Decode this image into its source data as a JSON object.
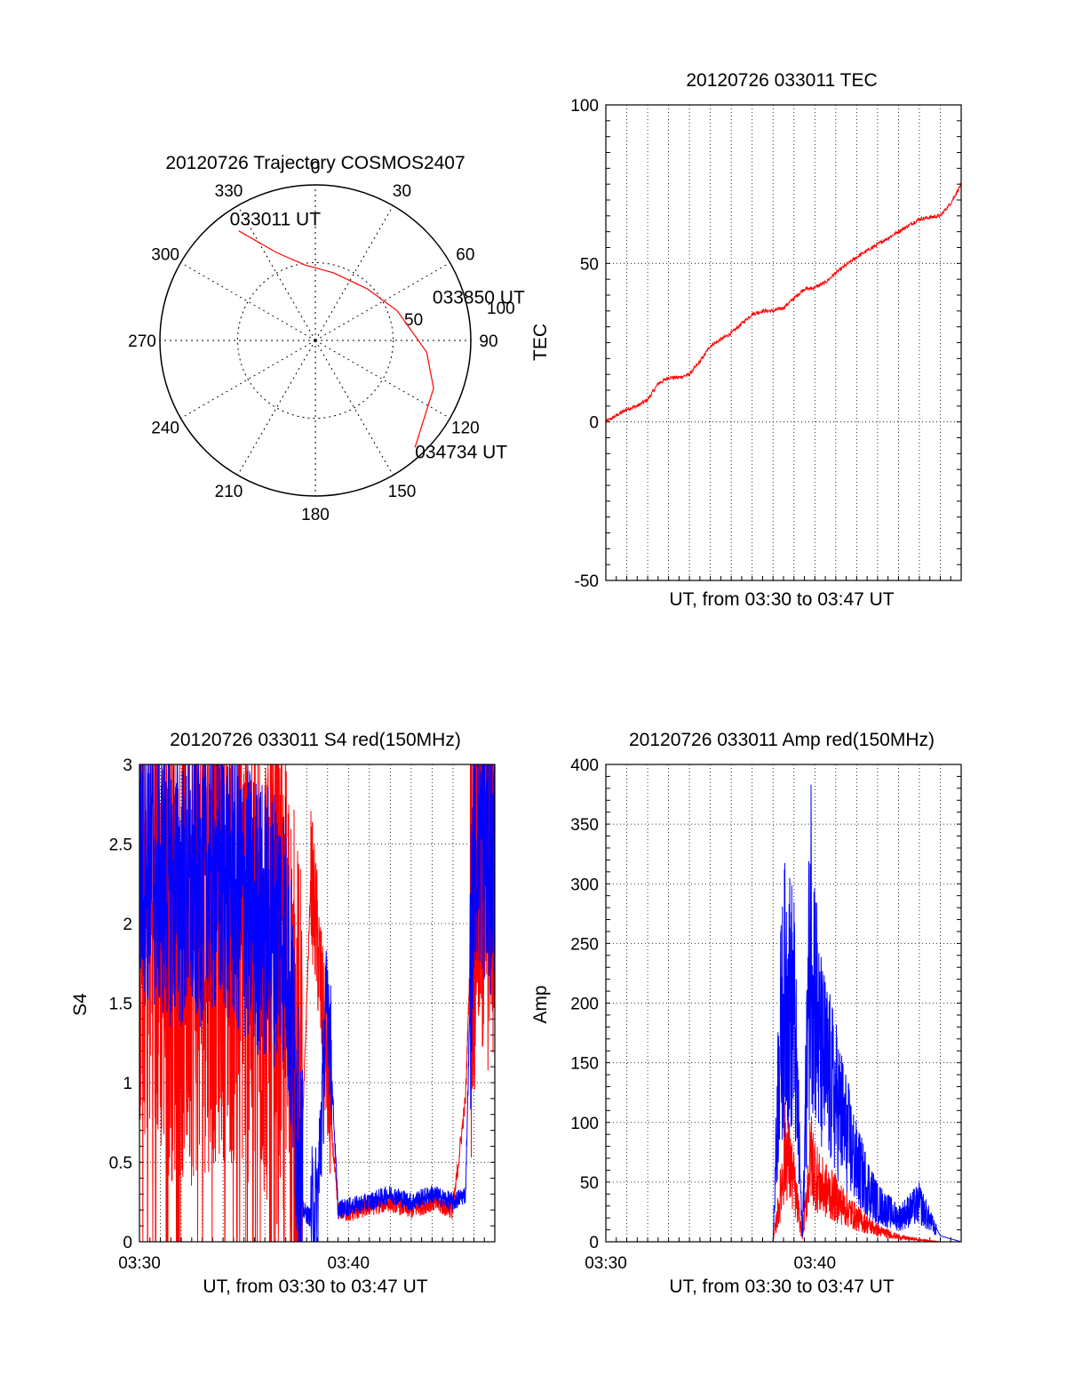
{
  "chart_data": [
    {
      "id": "trajectory",
      "type": "polar",
      "title": "20120726 Trajectory COSMOS2407",
      "angle_labels": [
        "0",
        "30",
        "60",
        "90",
        "120",
        "150",
        "180",
        "210",
        "240",
        "270",
        "300",
        "330"
      ],
      "radius_labels": [
        "50",
        "100"
      ],
      "radius_max": 100,
      "grid": true,
      "series": [
        {
          "color": "#ff0000",
          "points": [
            [
              -35,
              86
            ],
            [
              -24,
              62
            ],
            [
              -8,
              49
            ],
            [
              15,
              45
            ],
            [
              45,
              47
            ],
            [
              70,
              56
            ],
            [
              96,
              72
            ],
            [
              112,
              82
            ],
            [
              137,
              94
            ]
          ]
        }
      ],
      "annotations": [
        {
          "text": "033011 UT",
          "az": -35,
          "r": 86
        },
        {
          "text": "033850 UT",
          "az": 75,
          "r": 52
        },
        {
          "text": "034734 UT",
          "az": 137,
          "r": 94
        }
      ]
    },
    {
      "id": "tec",
      "type": "line",
      "title": "20120726 033011 TEC",
      "ylabel": "TEC",
      "xlabel": "UT, from 03:30 to 03:47 UT",
      "ylim": [
        -50,
        100
      ],
      "yticks": [
        "100",
        "50",
        "0",
        "-50"
      ],
      "xlim_min": [
        0,
        17
      ],
      "grid": true,
      "series": [
        {
          "color": "#ff0000",
          "x": [
            0,
            0.5,
            1,
            1.5,
            2,
            2.5,
            3,
            3.5,
            4,
            4.5,
            5,
            5.5,
            6,
            6.5,
            7,
            7.5,
            8,
            8.5,
            9,
            9.5,
            9.8,
            10.2,
            10.5,
            11,
            12,
            13,
            14,
            15,
            16,
            16.5,
            17
          ],
          "y": [
            0,
            2,
            4,
            5,
            7,
            12,
            14,
            14,
            15,
            19,
            24,
            26,
            28,
            31,
            34,
            35,
            35,
            36,
            39,
            42,
            42,
            43,
            44,
            47,
            52,
            56,
            60,
            64,
            65,
            69,
            75
          ]
        }
      ]
    },
    {
      "id": "s4",
      "type": "line",
      "title": "20120726 033011 S4 red(150MHz)",
      "ylabel": "S4",
      "xlabel": "UT, from 03:30 to 03:47 UT",
      "ylim": [
        0,
        3
      ],
      "yticks": [
        "0",
        "0.5",
        "1",
        "1.5",
        "2",
        "2.5",
        "3"
      ],
      "xticks": [
        "03:30",
        "03:40"
      ],
      "xlim_min": [
        0,
        17
      ],
      "grid": true,
      "series": [
        {
          "color": "#ff0000",
          "x": [
            0,
            2,
            4,
            6,
            7,
            7.8,
            8.2,
            8.5,
            9,
            9.5,
            10,
            11,
            12,
            13,
            14,
            15,
            15.6,
            16,
            17
          ],
          "y": [
            2.2,
            1.9,
            2.1,
            1.8,
            1.6,
            0.7,
            2.3,
            1.9,
            1.0,
            0.2,
            0.18,
            0.22,
            0.25,
            0.2,
            0.25,
            0.2,
            0.9,
            2.5,
            2.6
          ]
        },
        {
          "color": "#0000ff",
          "x": [
            0,
            2,
            4,
            6,
            7,
            7.8,
            8.2,
            8.5,
            9,
            9.5,
            10,
            11,
            12,
            13,
            14,
            15,
            15.6,
            16,
            17
          ],
          "y": [
            2.4,
            2.2,
            2.3,
            2.0,
            2.0,
            0.2,
            0.15,
            0.2,
            1.6,
            0.2,
            0.22,
            0.25,
            0.3,
            0.25,
            0.3,
            0.25,
            0.3,
            2.6,
            2.4
          ]
        }
      ]
    },
    {
      "id": "amp",
      "type": "line",
      "title": "20120726 033011 Amp red(150MHz)",
      "ylabel": "Amp",
      "xlabel": "UT, from 03:30 to 03:47 UT",
      "ylim": [
        0,
        400
      ],
      "yticks": [
        "0",
        "50",
        "100",
        "150",
        "200",
        "250",
        "300",
        "350",
        "400"
      ],
      "xticks": [
        "03:30",
        "03:40"
      ],
      "xlim_min": [
        0,
        17
      ],
      "grid": true,
      "series": [
        {
          "color": "#ff0000",
          "x": [
            0,
            8,
            8.3,
            8.6,
            9.0,
            9.4,
            9.8,
            10.2,
            11,
            12,
            13,
            14,
            15,
            16,
            17
          ],
          "y": [
            0,
            0,
            40,
            100,
            60,
            5,
            90,
            60,
            45,
            25,
            12,
            5,
            2,
            0,
            0
          ]
        },
        {
          "color": "#0000ff",
          "x": [
            0,
            8,
            8.3,
            8.6,
            9.0,
            9.4,
            9.8,
            10.2,
            11,
            12,
            13,
            14,
            15,
            16,
            17
          ],
          "y": [
            0,
            0,
            200,
            265,
            240,
            5,
            340,
            200,
            150,
            80,
            40,
            25,
            40,
            5,
            0
          ]
        }
      ]
    }
  ]
}
